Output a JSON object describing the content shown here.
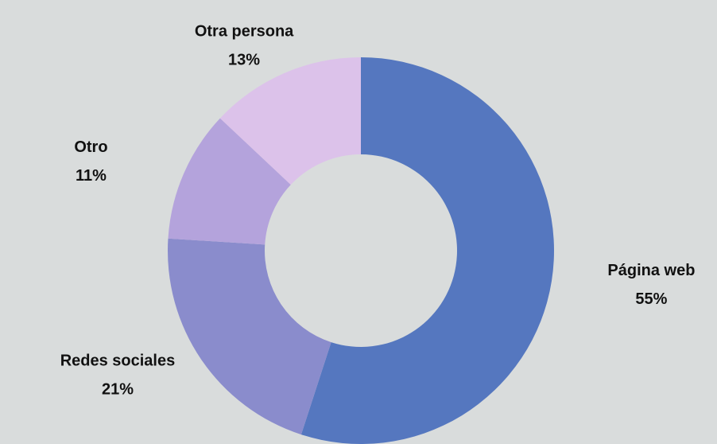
{
  "chart_data": {
    "type": "donut",
    "categories": [
      "Página web",
      "Redes sociales",
      "Otro",
      "Otra persona"
    ],
    "values": [
      55,
      21,
      11,
      13
    ],
    "value_labels": [
      "55%",
      "21%",
      "11%",
      "13%"
    ],
    "colors": [
      "#5577bf",
      "#8a8ccc",
      "#b4a3dc",
      "#dcc2ea"
    ]
  }
}
